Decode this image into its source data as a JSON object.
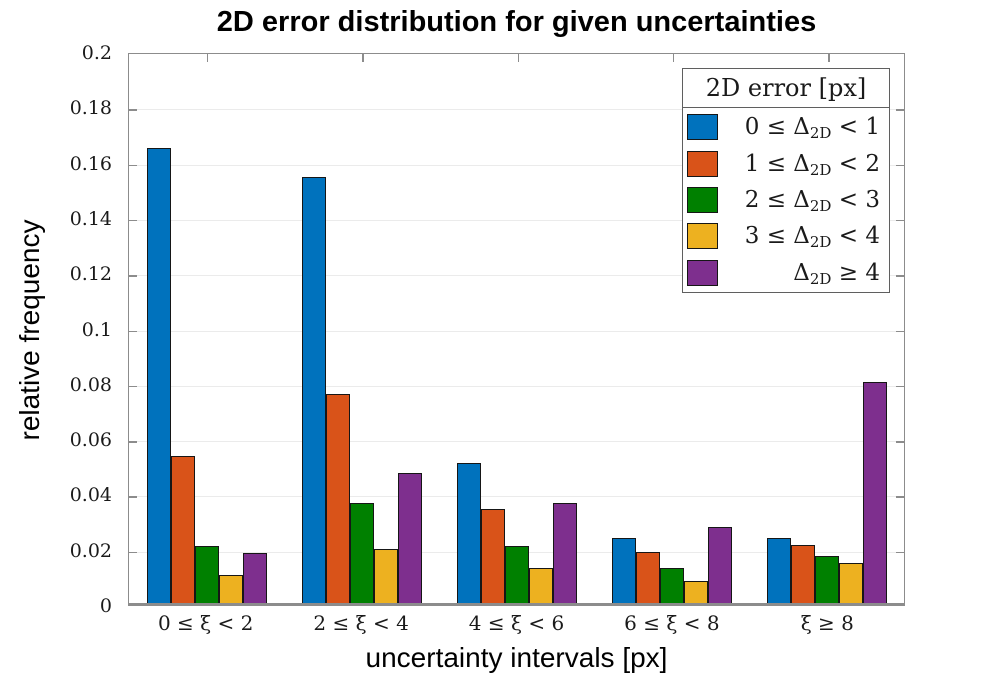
{
  "chart_data": {
    "type": "bar",
    "title": "2D error distribution for given uncertainties",
    "xlabel": "uncertainty intervals [px]",
    "ylabel": "relative frequency",
    "ylim": [
      0,
      0.2
    ],
    "grid": true,
    "legend_position": "top-right",
    "legend_title": "2D error [px]",
    "yticks": [
      0,
      0.02,
      0.04,
      0.06,
      0.08,
      0.1,
      0.12,
      0.14,
      0.16,
      0.18,
      0.2
    ],
    "ytick_labels": [
      "0",
      "0.02",
      "0.04",
      "0.06",
      "0.08",
      "0.1",
      "0.12",
      "0.14",
      "0.16",
      "0.18",
      "0.2"
    ],
    "categories": [
      "0 ≤ ξ < 2",
      "2 ≤ ξ < 4",
      "4 ≤ ξ < 6",
      "6 ≤ ξ < 8",
      "ξ ≥ 8"
    ],
    "series": [
      {
        "name": "0 ≤ Δ2D < 1",
        "label_pre": "0 ≤ Δ",
        "label_sub": "2D",
        "label_post": " < 1",
        "color": "#0072BD",
        "values": [
          0.1645,
          0.154,
          0.0505,
          0.0235,
          0.0235
        ]
      },
      {
        "name": "1 ≤ Δ2D < 2",
        "label_pre": "1 ≤ Δ",
        "label_sub": "2D",
        "label_post": " < 2",
        "color": "#D95319",
        "values": [
          0.053,
          0.0755,
          0.034,
          0.0185,
          0.021
        ]
      },
      {
        "name": "2 ≤ Δ2D < 3",
        "label_pre": "2 ≤ Δ",
        "label_sub": "2D",
        "label_post": " < 3",
        "color": "#008000",
        "values": [
          0.0205,
          0.036,
          0.0205,
          0.0125,
          0.017
        ]
      },
      {
        "name": "3 ≤ Δ2D < 4",
        "label_pre": "3 ≤ Δ",
        "label_sub": "2D",
        "label_post": " < 4",
        "color": "#EDB120",
        "values": [
          0.01,
          0.0195,
          0.0125,
          0.008,
          0.0145
        ]
      },
      {
        "name": "Δ2D ≥ 4",
        "label_pre": "Δ",
        "label_sub": "2D",
        "label_post": " ≥ 4",
        "color": "#7E2F8E",
        "values": [
          0.018,
          0.047,
          0.036,
          0.0275,
          0.08
        ]
      }
    ]
  }
}
